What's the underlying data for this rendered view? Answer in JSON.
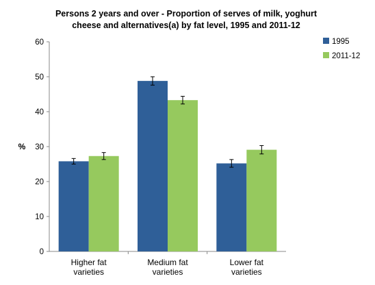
{
  "chart_data": {
    "type": "bar",
    "title": [
      "Persons 2 years and over - Proportion of serves of milk, yoghurt",
      "cheese and alternatives(a) by fat level,  1995 and 2011-12"
    ],
    "ylabel": "%",
    "xlabel": "",
    "ylim": [
      0,
      60
    ],
    "yticks": [
      0,
      10,
      20,
      30,
      40,
      50,
      60
    ],
    "categories": [
      [
        "Higher fat",
        "varieties"
      ],
      [
        "Medium fat",
        "varieties"
      ],
      [
        "Lower fat",
        "varieties"
      ]
    ],
    "series": [
      {
        "name": "1995",
        "color": "#2f5f98",
        "values": [
          25.8,
          48.8,
          25.2
        ],
        "error": [
          0.8,
          1.2,
          1.1
        ]
      },
      {
        "name": "2011-12",
        "color": "#96c95e",
        "values": [
          27.3,
          43.3,
          29.1
        ],
        "error": [
          1.0,
          1.1,
          1.2
        ]
      }
    ],
    "grid": false,
    "legend": "top-right",
    "error_bars": true
  }
}
